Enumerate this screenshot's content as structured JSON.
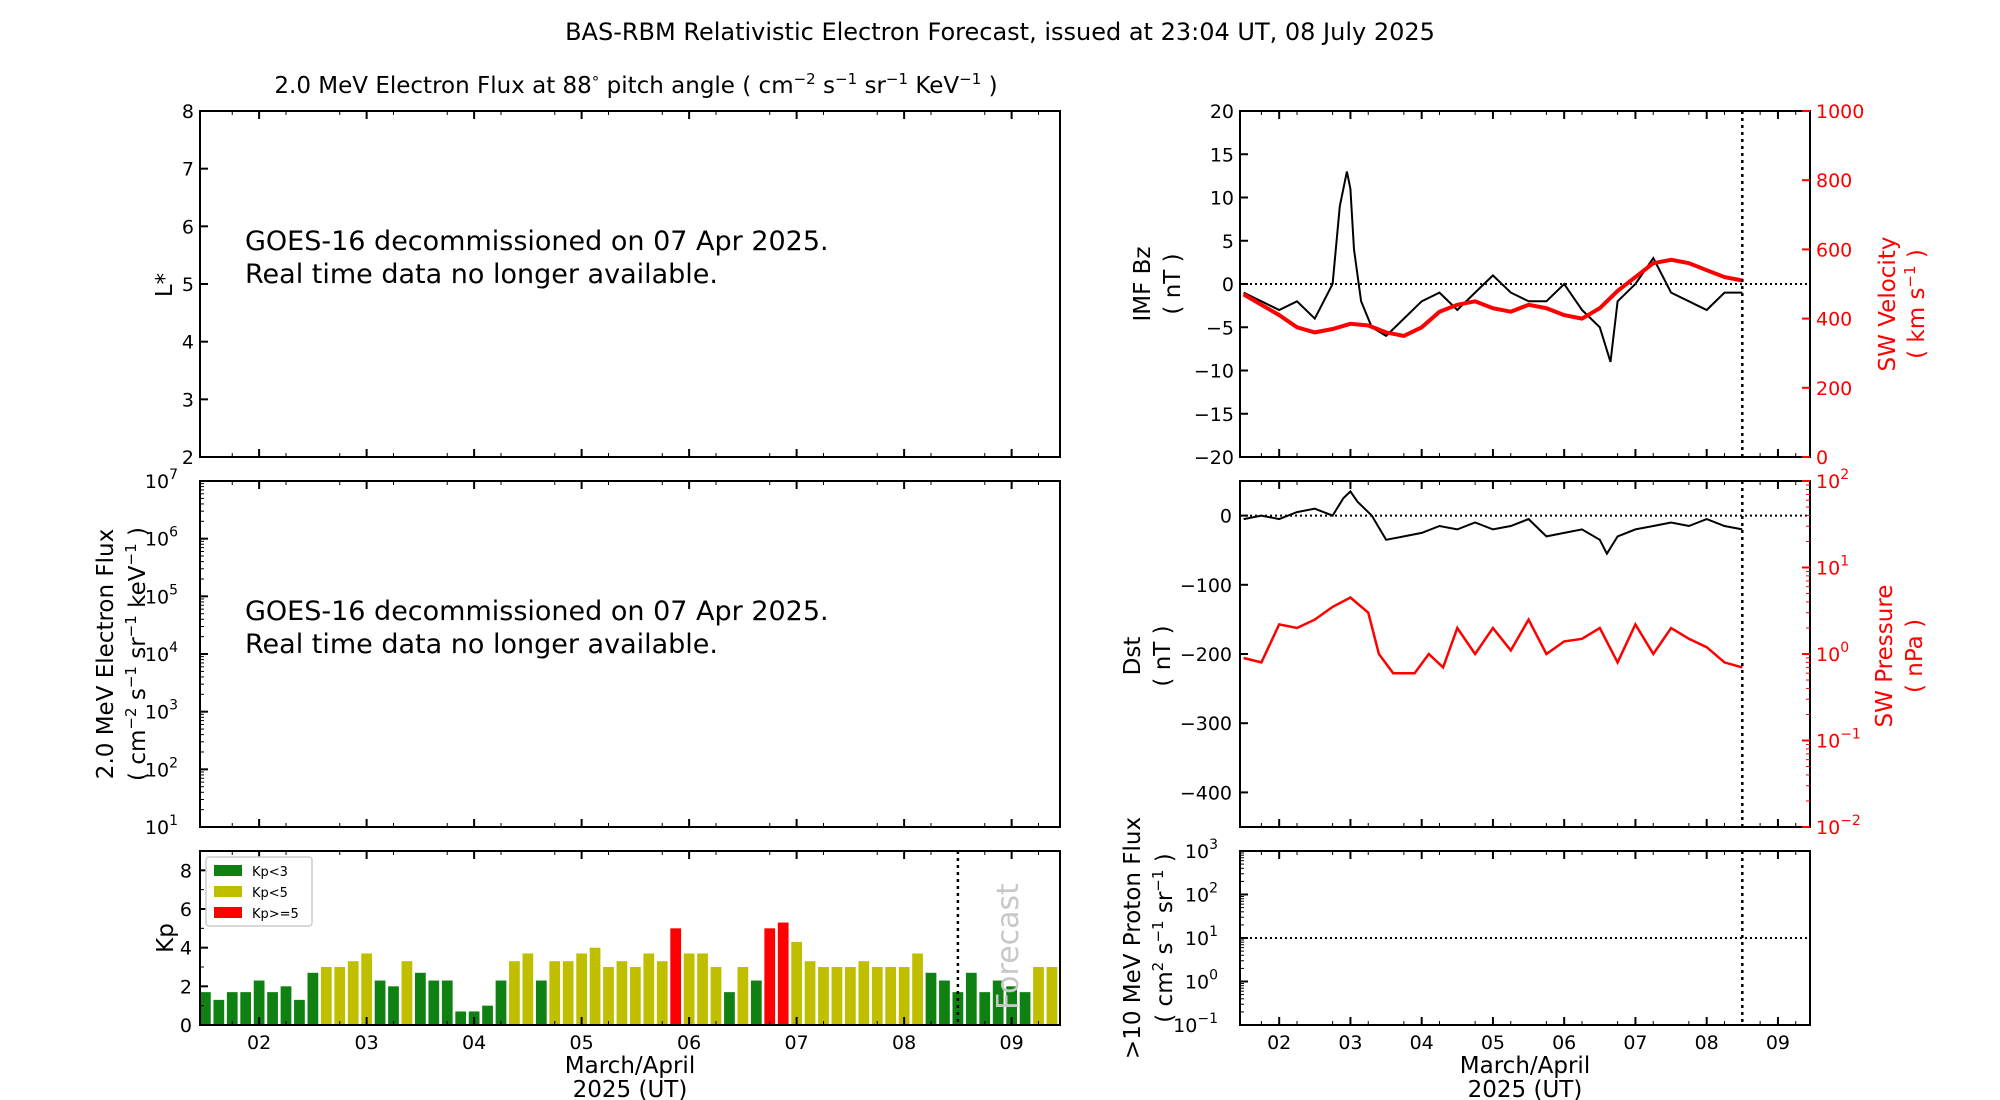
{
  "title": "BAS-RBM Relativistic Electron Forecast, issued at 23:04 UT, 08 July 2025",
  "chart_data": [
    {
      "id": "lstar_panel",
      "type": "heatmap",
      "title_parts": {
        "pre": "2.0 MeV Electron Flux at 88",
        "deg": "°",
        "mid": " pitch angle ( cm",
        "e1": "−2",
        "s": " s",
        "e2": "−1",
        "sr": " sr",
        "e3": "−1",
        "kev": " KeV",
        "e4": "−1",
        "post": " )"
      },
      "ylabel": "L*",
      "ylim": [
        2,
        8
      ],
      "yticks": [
        "2",
        "3",
        "4",
        "5",
        "6",
        "7",
        "8"
      ],
      "message": [
        "GOES-16 decommissioned on 07 Apr 2025.",
        "Real time data no longer available."
      ]
    },
    {
      "id": "flux_panel",
      "type": "line",
      "ylabel_line1": "2.0 MeV Electron Flux",
      "ylabel_line2_parts": {
        "pre": "( cm",
        "e1": "−2",
        "s": " s",
        "e2": "−1",
        "sr": " sr",
        "e3": "−1",
        "kev": " keV",
        "e4": "−1",
        "post": " )"
      },
      "ylim": [
        10,
        10000000
      ],
      "ylog": true,
      "yticks": [
        {
          "base": "10",
          "exp": "1"
        },
        {
          "base": "10",
          "exp": "2"
        },
        {
          "base": "10",
          "exp": "3"
        },
        {
          "base": "10",
          "exp": "4"
        },
        {
          "base": "10",
          "exp": "5"
        },
        {
          "base": "10",
          "exp": "6"
        },
        {
          "base": "10",
          "exp": "7"
        }
      ],
      "message": [
        "GOES-16 decommissioned on 07 Apr 2025.",
        "Real time data no longer available."
      ]
    },
    {
      "id": "kp_panel",
      "type": "bar",
      "ylabel": "Kp",
      "ylim": [
        0,
        9
      ],
      "yticks": [
        "0",
        "2",
        "4",
        "6",
        "8"
      ],
      "xlim": [
        1.45,
        9.45
      ],
      "xticks": [
        "02",
        "03",
        "04",
        "05",
        "06",
        "07",
        "08",
        "09"
      ],
      "xlabel": [
        "March/April",
        "2025 (UT)"
      ],
      "forecast_label": "Forecast",
      "forecast_x": 8.5,
      "legend": [
        {
          "label": "Kp<3",
          "color": "#0f8012"
        },
        {
          "label": "Kp<5",
          "color": "#bfbf00"
        },
        {
          "label": "Kp>=5",
          "color": "#ff0000"
        }
      ],
      "colors": {
        "low": "#0f8012",
        "mid": "#bfbf00",
        "high": "#ff0000"
      },
      "bar_width": 0.1,
      "values": [
        1.7,
        1.3,
        1.7,
        1.7,
        2.3,
        1.7,
        2.0,
        1.3,
        2.7,
        3.0,
        3.0,
        3.3,
        3.7,
        2.3,
        2.0,
        3.3,
        2.7,
        2.3,
        2.3,
        0.7,
        0.7,
        1.0,
        2.3,
        3.3,
        3.7,
        2.3,
        3.3,
        3.3,
        3.7,
        4.0,
        3.0,
        3.3,
        3.0,
        3.7,
        3.3,
        5.0,
        3.7,
        3.7,
        3.0,
        1.7,
        3.0,
        2.3,
        5.0,
        5.3,
        4.3,
        3.3,
        3.0,
        3.0,
        3.0,
        3.3,
        3.0,
        3.0,
        3.0,
        3.7,
        2.7,
        2.3,
        1.7,
        2.7,
        1.7,
        2.3,
        2.0,
        1.7,
        3.0,
        3.0,
        3.0,
        2.0,
        3.0,
        1.7,
        2.0,
        3.0,
        3.0
      ],
      "start_x": 1.5
    },
    {
      "id": "imf_panel",
      "type": "line",
      "ylabel": [
        "IMF Bz",
        "( nT )"
      ],
      "ylim": [
        -20,
        20
      ],
      "yticks": [
        "−20",
        "−15",
        "−10",
        "−5",
        "0",
        "5",
        "10",
        "15",
        "20"
      ],
      "y2label": {
        "pre": "SW Velocity",
        "l2pre": "( km s",
        "exp": "−1",
        "l2post": " )"
      },
      "y2lim": [
        0,
        1000
      ],
      "y2ticks": [
        "0",
        "200",
        "400",
        "600",
        "800",
        "1000"
      ],
      "xlim": [
        1.45,
        9.45
      ],
      "now_x": 8.5,
      "bz_series": {
        "name": "IMF Bz",
        "color": "#000000",
        "x": [
          1.5,
          1.75,
          2.0,
          2.25,
          2.5,
          2.75,
          2.85,
          2.95,
          3.0,
          3.05,
          3.15,
          3.3,
          3.5,
          3.75,
          4.0,
          4.25,
          4.5,
          4.75,
          5.0,
          5.25,
          5.5,
          5.75,
          6.0,
          6.25,
          6.5,
          6.65,
          6.75,
          7.0,
          7.25,
          7.5,
          7.75,
          8.0,
          8.25,
          8.5
        ],
        "y": [
          -1,
          -2,
          -3,
          -2,
          -4,
          0,
          9,
          13,
          11,
          4,
          -2,
          -5,
          -6,
          -4,
          -2,
          -1,
          -3,
          -1,
          1,
          -1,
          -2,
          -2,
          0,
          -3,
          -5,
          -9,
          -2,
          0,
          3,
          -1,
          -2,
          -3,
          -1,
          -1
        ]
      },
      "vsw_series": {
        "name": "SW Velocity",
        "color": "#ff0000",
        "x": [
          1.5,
          1.75,
          2.0,
          2.25,
          2.5,
          2.75,
          3.0,
          3.25,
          3.5,
          3.75,
          4.0,
          4.25,
          4.5,
          4.75,
          5.0,
          5.25,
          5.5,
          5.75,
          6.0,
          6.25,
          6.5,
          6.75,
          7.0,
          7.25,
          7.5,
          7.75,
          8.0,
          8.25,
          8.5
        ],
        "y": [
          470,
          440,
          410,
          375,
          360,
          370,
          385,
          380,
          360,
          350,
          375,
          420,
          440,
          450,
          430,
          420,
          440,
          430,
          410,
          400,
          430,
          480,
          520,
          560,
          570,
          560,
          540,
          520,
          510
        ]
      }
    },
    {
      "id": "dst_panel",
      "type": "line",
      "ylabel": [
        "Dst",
        "( nT )"
      ],
      "ylim": [
        -450,
        50
      ],
      "yticks": [
        "−400",
        "−300",
        "−200",
        "−100",
        "0"
      ],
      "y2label": {
        "pre": "SW Pressure",
        "l2": "( nPa )"
      },
      "y2lim": [
        0.01,
        100
      ],
      "y2log": true,
      "y2ticks": [
        {
          "base": "10",
          "exp": "−2"
        },
        {
          "base": "10",
          "exp": "−1"
        },
        {
          "base": "10",
          "exp": "0"
        },
        {
          "base": "10",
          "exp": "1"
        },
        {
          "base": "10",
          "exp": "2"
        }
      ],
      "xlim": [
        1.45,
        9.45
      ],
      "now_x": 8.5,
      "dst_series": {
        "name": "Dst",
        "color": "#000000",
        "x": [
          1.5,
          1.75,
          2.0,
          2.25,
          2.5,
          2.75,
          2.9,
          3.0,
          3.1,
          3.3,
          3.5,
          3.75,
          4.0,
          4.25,
          4.5,
          4.75,
          5.0,
          5.25,
          5.5,
          5.75,
          6.0,
          6.25,
          6.5,
          6.6,
          6.75,
          7.0,
          7.25,
          7.5,
          7.75,
          8.0,
          8.25,
          8.5
        ],
        "y": [
          -5,
          0,
          -5,
          5,
          10,
          0,
          25,
          35,
          20,
          0,
          -35,
          -30,
          -25,
          -15,
          -20,
          -10,
          -20,
          -15,
          -5,
          -30,
          -25,
          -20,
          -35,
          -55,
          -30,
          -20,
          -15,
          -10,
          -15,
          -5,
          -15,
          -20
        ]
      },
      "psw_series": {
        "name": "SW Pressure",
        "color": "#ff0000",
        "x": [
          1.5,
          1.75,
          2.0,
          2.25,
          2.5,
          2.75,
          3.0,
          3.25,
          3.4,
          3.6,
          3.9,
          4.1,
          4.3,
          4.5,
          4.75,
          5.0,
          5.25,
          5.5,
          5.75,
          6.0,
          6.25,
          6.5,
          6.75,
          7.0,
          7.25,
          7.5,
          7.75,
          8.0,
          8.25,
          8.5
        ],
        "y": [
          0.9,
          0.8,
          2.2,
          2.0,
          2.5,
          3.5,
          4.5,
          3.0,
          1.0,
          0.6,
          0.6,
          1.0,
          0.7,
          2.0,
          1.0,
          2.0,
          1.1,
          2.5,
          1.0,
          1.4,
          1.5,
          2.0,
          0.8,
          2.2,
          1.0,
          2.0,
          1.5,
          1.2,
          0.8,
          0.7
        ]
      }
    },
    {
      "id": "proton_panel",
      "type": "line",
      "ylabel_line1": ">10 MeV Proton Flux",
      "ylabel_line2_parts": {
        "pre": "( cm",
        "e1": "2",
        "s": " s",
        "e2": "−1",
        "sr": " sr",
        "e3": "−1",
        "post": " )"
      },
      "ylim": [
        0.1,
        1000
      ],
      "ylog": true,
      "yticks": [
        {
          "base": "10",
          "exp": "−1"
        },
        {
          "base": "10",
          "exp": "0"
        },
        {
          "base": "10",
          "exp": "1"
        },
        {
          "base": "10",
          "exp": "2"
        },
        {
          "base": "10",
          "exp": "3"
        }
      ],
      "threshold": 10,
      "xlim": [
        1.45,
        9.45
      ],
      "xticks": [
        "02",
        "03",
        "04",
        "05",
        "06",
        "07",
        "08",
        "09"
      ],
      "xlabel": [
        "March/April",
        "2025 (UT)"
      ],
      "now_x": 8.5
    }
  ]
}
